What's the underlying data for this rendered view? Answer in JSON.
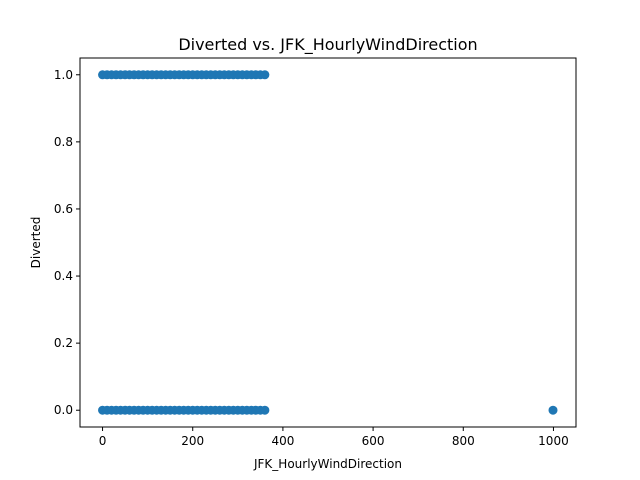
{
  "chart_data": {
    "type": "scatter",
    "title": "Diverted vs. JFK_HourlyWindDirection",
    "xlabel": "JFK_HourlyWindDirection",
    "ylabel": "Diverted",
    "xlim": [
      -50,
      1050
    ],
    "ylim": [
      -0.05,
      1.05
    ],
    "xticks": [
      0,
      200,
      400,
      600,
      800,
      1000
    ],
    "xtick_labels": [
      "0",
      "200",
      "400",
      "600",
      "800",
      "1000"
    ],
    "yticks": [
      0.0,
      0.2,
      0.4,
      0.6,
      0.8,
      1.0
    ],
    "ytick_labels": [
      "0.0",
      "0.2",
      "0.4",
      "0.6",
      "0.8",
      "1.0"
    ],
    "grid": false,
    "marker_color": "#1f77b4",
    "series": [
      {
        "x": [
          0,
          10,
          20,
          30,
          40,
          50,
          60,
          70,
          80,
          90,
          100,
          110,
          120,
          130,
          140,
          150,
          160,
          170,
          180,
          190,
          200,
          210,
          220,
          230,
          240,
          250,
          260,
          270,
          280,
          290,
          300,
          310,
          320,
          330,
          340,
          350,
          360,
          0,
          10,
          20,
          30,
          40,
          50,
          60,
          70,
          80,
          90,
          100,
          110,
          120,
          130,
          140,
          150,
          160,
          170,
          180,
          190,
          200,
          210,
          220,
          230,
          240,
          250,
          260,
          270,
          280,
          290,
          300,
          310,
          320,
          330,
          340,
          350,
          360,
          999
        ],
        "y": [
          1,
          1,
          1,
          1,
          1,
          1,
          1,
          1,
          1,
          1,
          1,
          1,
          1,
          1,
          1,
          1,
          1,
          1,
          1,
          1,
          1,
          1,
          1,
          1,
          1,
          1,
          1,
          1,
          1,
          1,
          1,
          1,
          1,
          1,
          1,
          1,
          1,
          0,
          0,
          0,
          0,
          0,
          0,
          0,
          0,
          0,
          0,
          0,
          0,
          0,
          0,
          0,
          0,
          0,
          0,
          0,
          0,
          0,
          0,
          0,
          0,
          0,
          0,
          0,
          0,
          0,
          0,
          0,
          0,
          0,
          0,
          0,
          0,
          0,
          0
        ]
      }
    ]
  }
}
